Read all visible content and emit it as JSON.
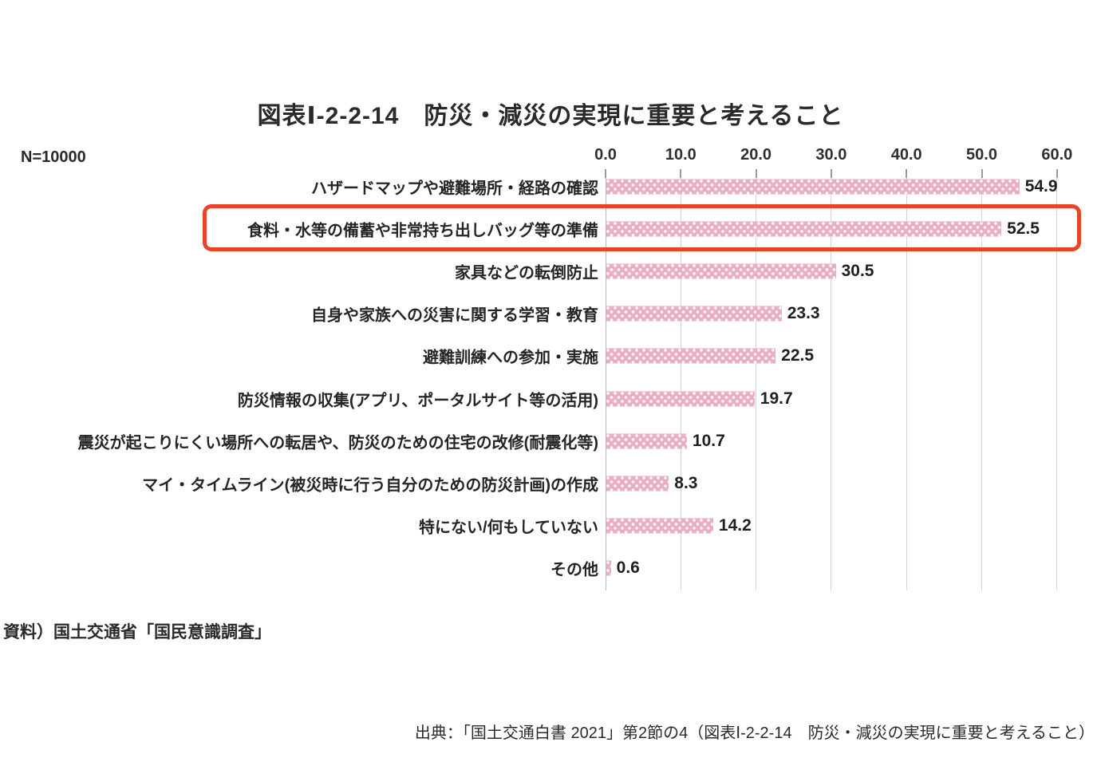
{
  "title": "図表Ⅰ-2-2-14　防災・減災の実現に重要と考えること",
  "sample_size": "N=10000",
  "source_note": "資料）国土交通省「国民意識調査」",
  "caption": "出典：「国土交通白書 2021」第2節の4（図表Ⅰ-2-2-14　防災・減災の実現に重要と考えること）",
  "chart_data": {
    "type": "bar",
    "orientation": "horizontal",
    "title": "図表Ⅰ-2-2-14　防災・減災の実現に重要と考えること",
    "sample_note": "N=10000",
    "categories": [
      "ハザードマップや避難場所・経路の確認",
      "食料・水等の備蓄や非常持ち出しバッグ等の準備",
      "家具などの転倒防止",
      "自身や家族への災害に関する学習・教育",
      "避難訓練への参加・実施",
      "防災情報の収集(アプリ、ポータルサイト等の活用)",
      "震災が起こりにくい場所への転居や、防災のための住宅の改修(耐震化等)",
      "マイ・タイムライン(被災時に行う自分のための防災計画)の作成",
      "特にない/何もしていない",
      "その他"
    ],
    "values": [
      54.9,
      52.5,
      30.5,
      23.3,
      22.5,
      19.7,
      10.7,
      8.3,
      14.2,
      0.6
    ],
    "value_labels": [
      "54.9",
      "52.5",
      "30.5",
      "23.3",
      "22.5",
      "19.7",
      "10.7",
      "8.3",
      "14.2",
      "0.6"
    ],
    "xlim": [
      0,
      60
    ],
    "x_ticks": [
      0,
      10,
      20,
      30,
      40,
      50,
      60
    ],
    "x_tick_labels": [
      "0.0",
      "10.0",
      "20.0",
      "30.0",
      "40.0",
      "50.0",
      "60.0"
    ],
    "grid": true,
    "legend": "none",
    "bar_color": "#E9AEC4",
    "bar_pattern": "white-dots",
    "highlighted_category_index": 1,
    "highlight_box_color": "#E8432B"
  }
}
